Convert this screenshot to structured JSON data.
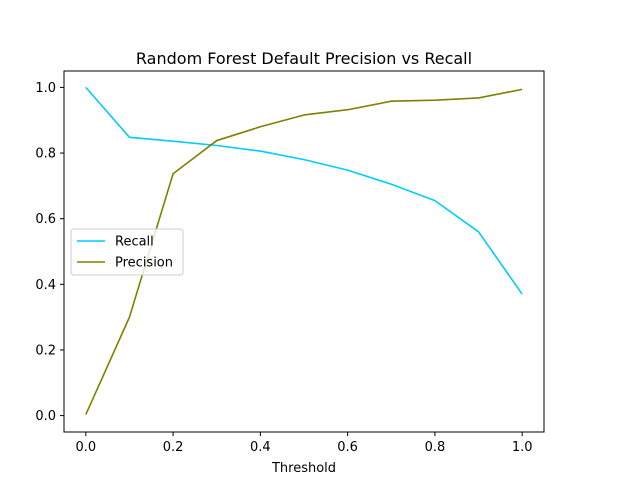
{
  "chart_data": {
    "type": "line",
    "title": "Random Forest Default Precision vs Recall",
    "xlabel": "Threshold",
    "ylabel": "",
    "xlim": [
      -0.05,
      1.05
    ],
    "ylim": [
      -0.05,
      1.05
    ],
    "xticks": [
      0.0,
      0.2,
      0.4,
      0.6,
      0.8,
      1.0
    ],
    "xtick_labels": [
      "0.0",
      "0.2",
      "0.4",
      "0.6",
      "0.8",
      "1.0"
    ],
    "yticks": [
      0.0,
      0.2,
      0.4,
      0.6,
      0.8,
      1.0
    ],
    "ytick_labels": [
      "0.0",
      "0.2",
      "0.4",
      "0.6",
      "0.8",
      "1.0"
    ],
    "grid": false,
    "legend_position": "center-left",
    "x": [
      0.0,
      0.1,
      0.2,
      0.3,
      0.4,
      0.5,
      0.6,
      0.7,
      0.8,
      0.9,
      1.0
    ],
    "series": [
      {
        "name": "Recall",
        "color": "#00ccff",
        "values": [
          1.0,
          0.848,
          0.836,
          0.823,
          0.806,
          0.78,
          0.748,
          0.705,
          0.655,
          0.56,
          0.37
        ]
      },
      {
        "name": "Precision",
        "color": "#808000",
        "values": [
          0.003,
          0.3,
          0.737,
          0.838,
          0.88,
          0.916,
          0.932,
          0.958,
          0.961,
          0.968,
          0.994
        ]
      }
    ]
  }
}
